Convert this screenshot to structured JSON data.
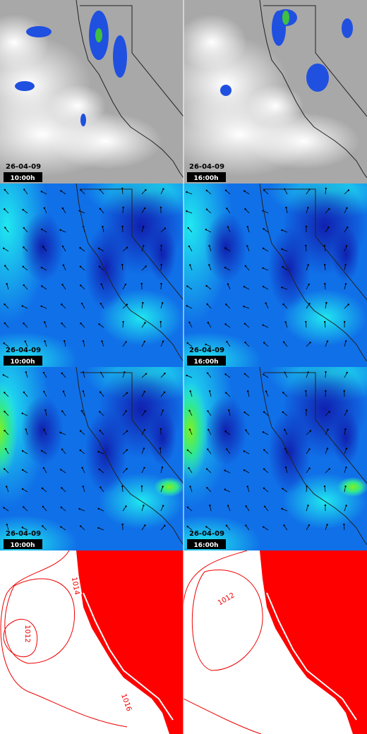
{
  "panels": [
    {
      "date": "26-04-09",
      "time": "10:00h"
    },
    {
      "date": "26-04-09",
      "time": "16:00h"
    },
    {
      "date": "26-04-09",
      "time": "10:00h"
    },
    {
      "date": "26-04-09",
      "time": "16:00h"
    },
    {
      "date": "26-04-09",
      "time": "10:00h"
    },
    {
      "date": "26-04-09",
      "time": "16:00h"
    }
  ],
  "pressure_panels": [
    {
      "contour_labels": [
        "1014",
        "1012",
        "1016"
      ]
    },
    {
      "contour_labels": [
        "1012"
      ]
    }
  ]
}
